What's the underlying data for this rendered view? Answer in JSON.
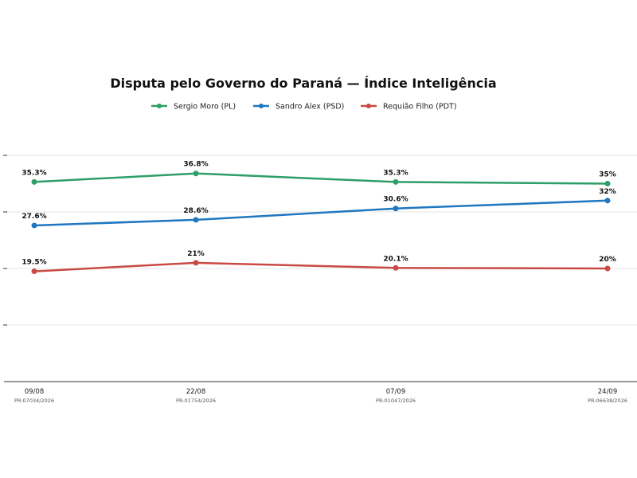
{
  "chart_data": {
    "type": "line",
    "title": "Disputa pelo Governo do Paraná — Índice Inteligência",
    "xlabel": "",
    "ylabel": "",
    "categories": [
      "09/08",
      "22/08",
      "07/09",
      "24/09"
    ],
    "category_sublabels": [
      "PR-07034/2026",
      "PR-01754/2026",
      "PR-01047/2026",
      "PR-06638/2026"
    ],
    "ylim": [
      0,
      40
    ],
    "yticks": [
      10,
      20,
      30,
      40
    ],
    "grid": true,
    "legend_position": "top-center",
    "series": [
      {
        "name": "Sergio Moro (PL)",
        "color": "#2e9e68",
        "values": [
          35.3,
          36.8,
          35.3,
          35
        ],
        "labels": [
          "35.3%",
          "36.8%",
          "35.3%",
          "35%"
        ]
      },
      {
        "name": "Sandro Alex (PSD)",
        "color": "#1f77c0",
        "values": [
          27.6,
          28.6,
          30.6,
          32
        ],
        "labels": [
          "27.6%",
          "28.6%",
          "30.6%",
          "32%"
        ]
      },
      {
        "name": "Requião Filho (PDT)",
        "color": "#c94a44",
        "values": [
          19.5,
          21,
          20.1,
          20
        ],
        "labels": [
          "19.5%",
          "21%",
          "20.1%",
          "20%"
        ]
      }
    ]
  }
}
